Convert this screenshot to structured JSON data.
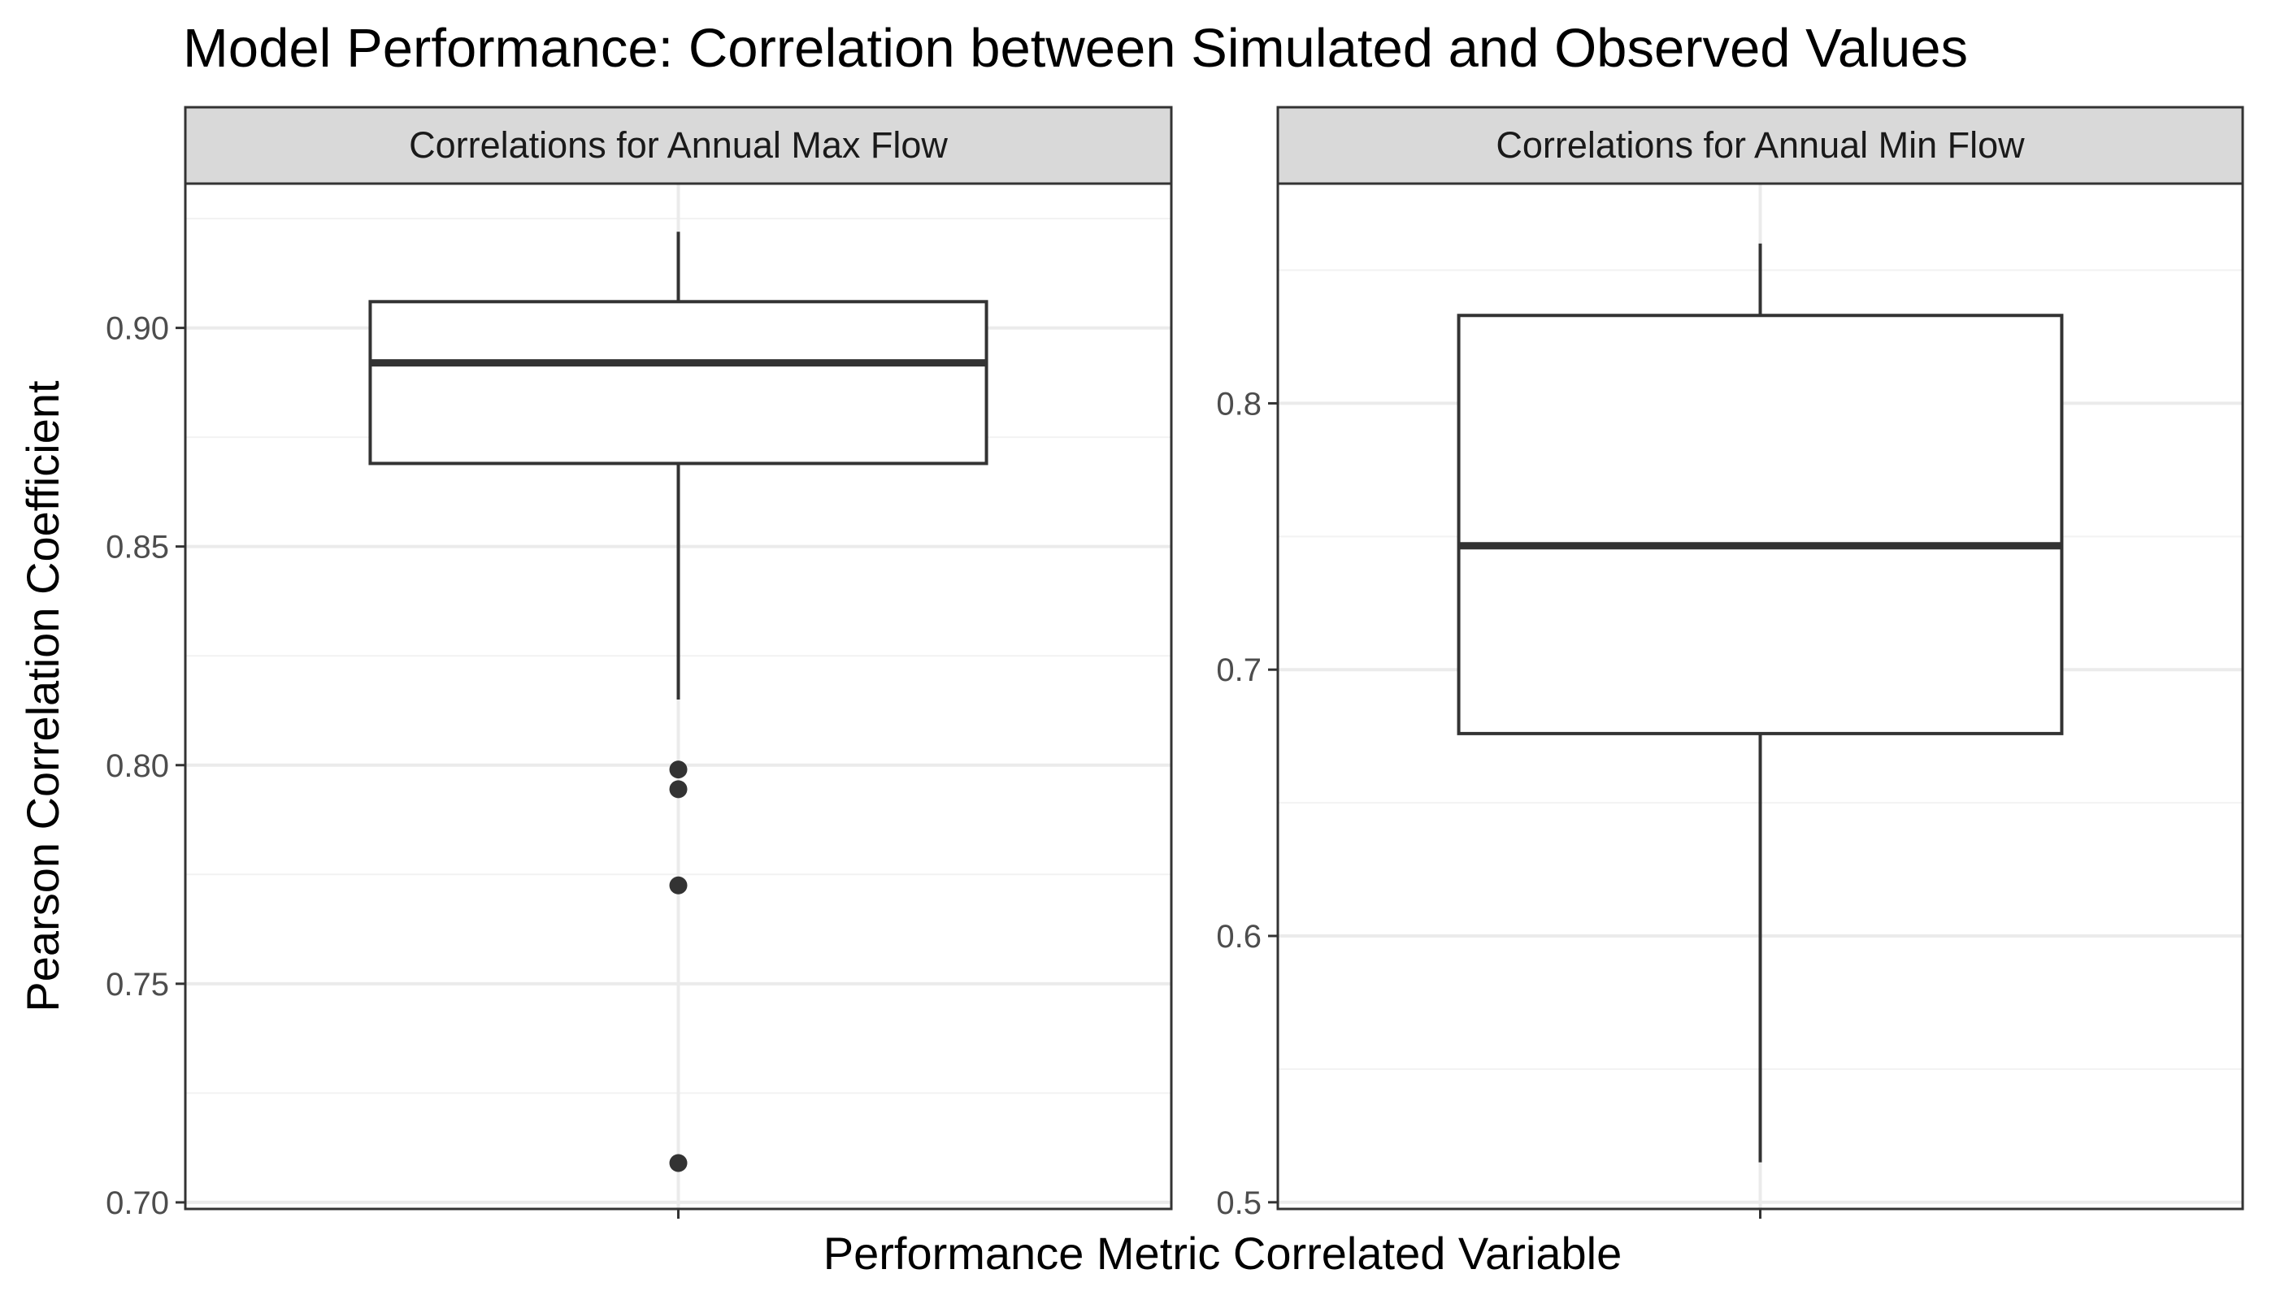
{
  "chart_data": {
    "type": "boxplot",
    "title": "Model Performance: Correlation between Simulated and Observed Values",
    "xlabel": "Performance Metric Correlated Variable",
    "ylabel": "Pearson Correlation Coefficient",
    "colors": {
      "box_line": "#333333",
      "box_fill": "#ffffff",
      "outlier": "#333333",
      "strip_fill": "#d9d9d9",
      "panel_border": "#333333",
      "grid": "#ebebeb",
      "tick_text": "#4d4d4d"
    },
    "panels": [
      {
        "label": "Correlations for Annual Max Flow",
        "ylim": [
          0.6985,
          0.933
        ],
        "yticks": [
          0.7,
          0.75,
          0.8,
          0.85,
          0.9
        ],
        "ytick_labels": [
          "0.70",
          "0.75",
          "0.80",
          "0.85",
          "0.90"
        ],
        "minor_ticks": [
          0.725,
          0.775,
          0.825,
          0.875,
          0.925
        ],
        "box": {
          "whisker_low": 0.815,
          "q1": 0.869,
          "median": 0.892,
          "q3": 0.906,
          "whisker_high": 0.922
        },
        "outliers": [
          0.799,
          0.7945,
          0.7725,
          0.709
        ]
      },
      {
        "label": "Correlations for Annual Min Flow",
        "ylim": [
          0.4975,
          0.8825
        ],
        "yticks": [
          0.5,
          0.6,
          0.7,
          0.8
        ],
        "ytick_labels": [
          "0.5",
          "0.6",
          "0.7",
          "0.8"
        ],
        "minor_ticks": [
          0.55,
          0.65,
          0.75,
          0.85
        ],
        "box": {
          "whisker_low": 0.515,
          "q1": 0.676,
          "median": 0.7465,
          "q3": 0.833,
          "whisker_high": 0.86
        },
        "outliers": []
      }
    ]
  }
}
